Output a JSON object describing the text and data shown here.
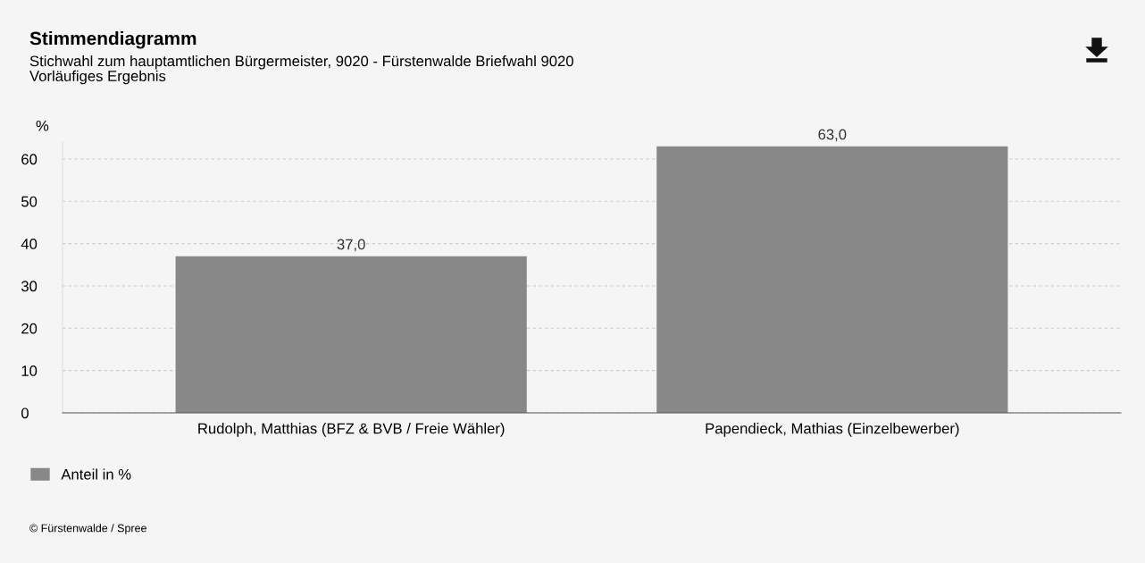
{
  "chart_data": {
    "type": "bar",
    "title": "Stimmendiagramm",
    "subtitle": "Stichwahl zum hauptamtlichen Bürgermeister, 9020 - Fürstenwalde Briefwahl 9020\nVorläufiges Ergebnis",
    "ylabel": "%",
    "categories": [
      "Rudolph, Matthias (BFZ & BVB / Freie Wähler)",
      "Papendieck, Mathias (Einzelbewerber)"
    ],
    "series": [
      {
        "name": "Anteil in %",
        "color": "#888888",
        "values": [
          37.0,
          63.0
        ]
      }
    ],
    "value_labels": [
      "37,0",
      "63,0"
    ],
    "ylim": [
      0,
      64
    ],
    "yticks": [
      0,
      10,
      20,
      30,
      40,
      50,
      60
    ],
    "grid": "y",
    "legend": "bottom left",
    "annotations": [
      "© Fürstenwalde / Spree"
    ]
  }
}
